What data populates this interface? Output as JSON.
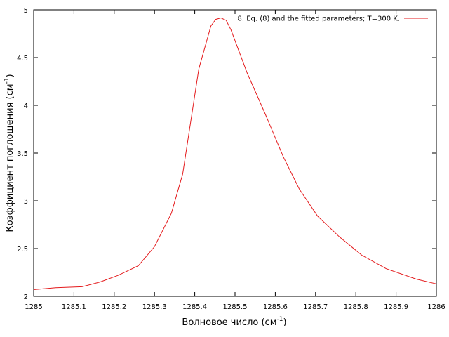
{
  "chart_data": {
    "type": "line",
    "xlabel": "Волновое число (см",
    "xlabel_sup": "-1",
    "xlabel_suffix": ")",
    "ylabel": "Коэффициент поглощения (см",
    "ylabel_sup": "-1",
    "ylabel_suffix": ")",
    "xlim": [
      1285,
      1286
    ],
    "ylim": [
      2,
      5
    ],
    "xticks": [
      "1285",
      "1285.1",
      "1285.2",
      "1285.3",
      "1285.4",
      "1285.5",
      "1285.6",
      "1285.7",
      "1285.8",
      "1285.9",
      "1286"
    ],
    "yticks": [
      "2",
      "2.5",
      "3",
      "3.5",
      "4",
      "4.5",
      "5"
    ],
    "grid": false,
    "legend_position": "top-right",
    "series_color": "#e41a1c",
    "series": [
      {
        "name": "8. Eq. (8) and the fitted parameters; T=300 K.",
        "x": [
          1285.0,
          1285.055,
          1285.12,
          1285.165,
          1285.21,
          1285.26,
          1285.3,
          1285.342,
          1285.37,
          1285.41,
          1285.44,
          1285.452,
          1285.465,
          1285.478,
          1285.49,
          1285.53,
          1285.575,
          1285.62,
          1285.66,
          1285.705,
          1285.76,
          1285.815,
          1285.875,
          1285.95,
          1286.0
        ],
        "y": [
          2.07,
          2.09,
          2.1,
          2.15,
          2.22,
          2.32,
          2.52,
          2.87,
          3.28,
          4.38,
          4.83,
          4.9,
          4.915,
          4.89,
          4.79,
          4.34,
          3.91,
          3.46,
          3.12,
          2.84,
          2.62,
          2.43,
          2.29,
          2.18,
          2.13
        ]
      }
    ]
  }
}
